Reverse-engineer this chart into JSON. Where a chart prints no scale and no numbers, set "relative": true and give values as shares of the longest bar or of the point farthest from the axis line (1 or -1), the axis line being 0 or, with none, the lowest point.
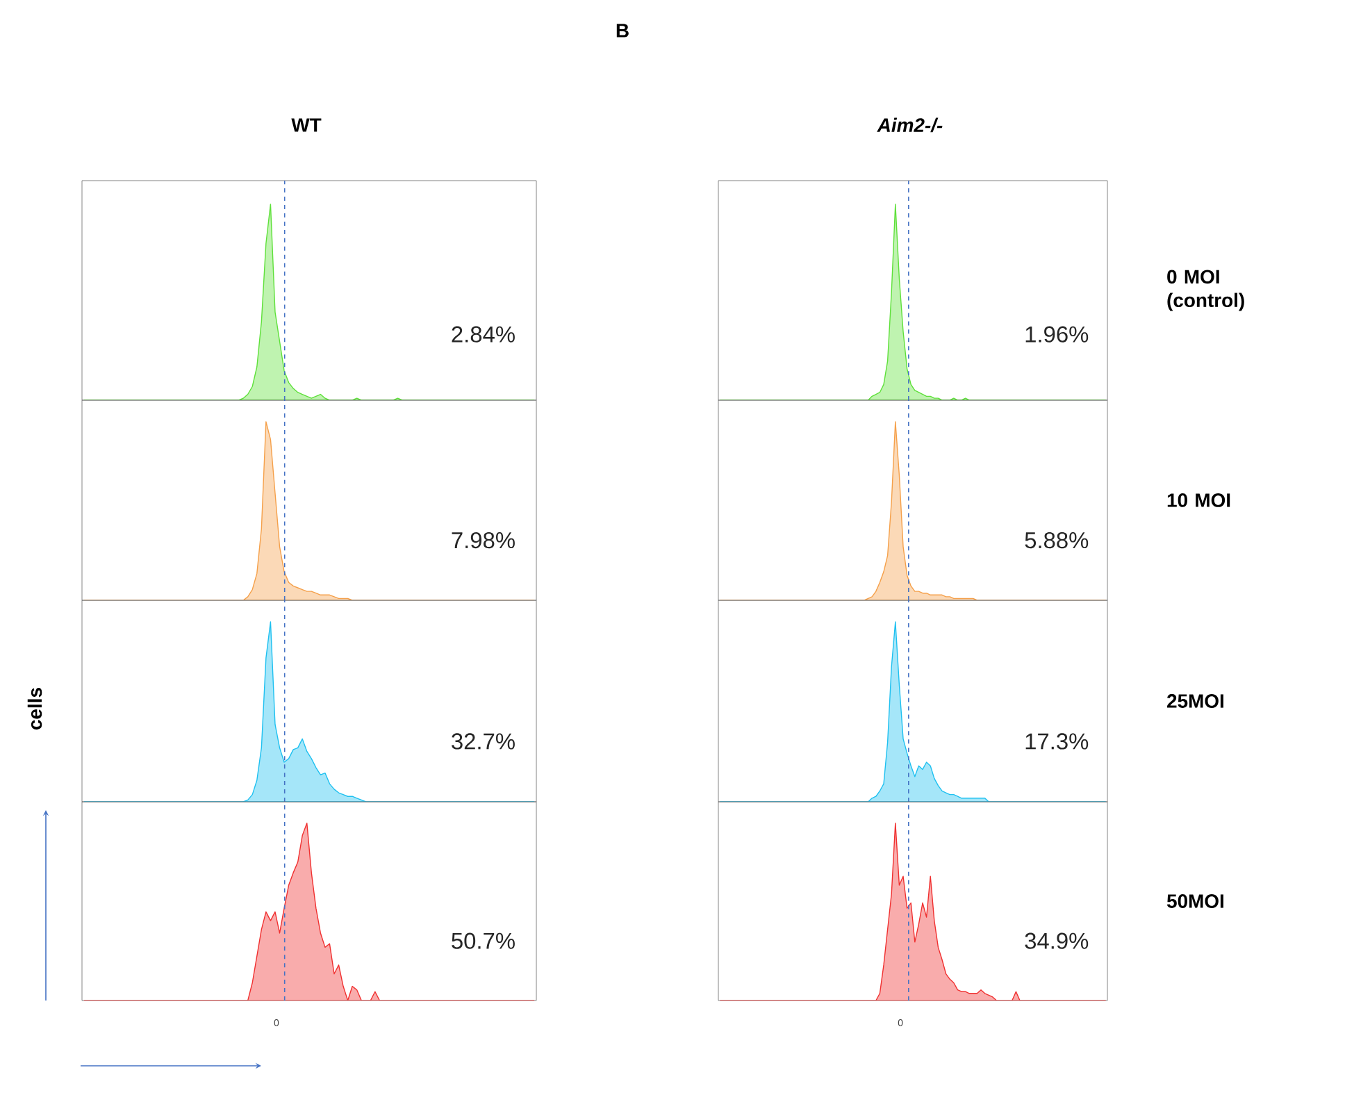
{
  "chart_data": [
    {
      "type": "area",
      "relative": true,
      "subtitle": "WT",
      "color": "#5ee03a",
      "annotations": [
        "2.84%",
        "B"
      ],
      "categories": [
        null,
        null,
        null,
        null,
        null,
        null,
        null,
        null,
        null,
        null,
        null,
        null,
        null,
        null,
        null,
        null,
        null,
        null,
        null,
        null,
        null,
        null,
        null,
        null,
        null,
        null,
        null,
        null,
        null,
        null,
        null,
        null,
        null,
        null,
        null,
        null,
        null,
        null,
        null,
        null,
        null,
        null,
        null,
        null,
        null,
        null,
        null,
        null,
        null,
        null,
        null,
        null,
        null,
        null,
        null,
        null,
        null,
        null,
        null,
        null,
        null,
        null,
        null,
        null,
        null,
        null,
        null,
        null,
        null,
        null,
        null,
        null,
        null,
        null,
        null,
        null,
        null,
        null,
        null,
        null,
        null,
        null,
        null,
        null,
        null,
        null,
        null,
        null,
        null,
        null,
        null,
        null,
        null,
        null,
        null,
        null,
        null,
        null,
        null,
        null
      ],
      "values": [
        0,
        0,
        0,
        0,
        0,
        0,
        0,
        0,
        0,
        0,
        0,
        0,
        0,
        0,
        0,
        0,
        0,
        0,
        0,
        0,
        0,
        0,
        0,
        0,
        0,
        0,
        0,
        0,
        0,
        0,
        0,
        0,
        0,
        0,
        0,
        0.01,
        0.03,
        0.07,
        0.17,
        0.4,
        0.8,
        1.0,
        0.45,
        0.3,
        0.15,
        0.09,
        0.06,
        0.04,
        0.03,
        0.02,
        0.01,
        0.02,
        0.03,
        0.01,
        0,
        0,
        0,
        0,
        0,
        0,
        0.01,
        0,
        0,
        0,
        0,
        0,
        0,
        0,
        0,
        0.01,
        0,
        0,
        0,
        0,
        0,
        0,
        0,
        0,
        0,
        0,
        0,
        0,
        0,
        0,
        0,
        0,
        0,
        0,
        0,
        0,
        0,
        0,
        0,
        0,
        0,
        0,
        0,
        0,
        0,
        0
      ]
    },
    {
      "type": "area",
      "relative": true,
      "subtitle": "Aim2-/-",
      "color": "#5ee03a",
      "annotations": [
        "1.96%",
        "0 MOI (control)"
      ],
      "categories": [
        null,
        null,
        null,
        null,
        null,
        null,
        null,
        null,
        null,
        null,
        null,
        null,
        null,
        null,
        null,
        null,
        null,
        null,
        null,
        null,
        null,
        null,
        null,
        null,
        null,
        null,
        null,
        null,
        null,
        null,
        null,
        null,
        null,
        null,
        null,
        null,
        null,
        null,
        null,
        null,
        null,
        null,
        null,
        null,
        null,
        null,
        null,
        null,
        null,
        null,
        null,
        null,
        null,
        null,
        null,
        null,
        null,
        null,
        null,
        null,
        null,
        null,
        null,
        null,
        null,
        null,
        null,
        null,
        null,
        null,
        null,
        null,
        null,
        null,
        null,
        null,
        null,
        null,
        null,
        null,
        null,
        null,
        null,
        null,
        null,
        null,
        null,
        null,
        null,
        null,
        null,
        null,
        null,
        null,
        null,
        null,
        null,
        null,
        null,
        null
      ],
      "values": [
        0,
        0,
        0,
        0,
        0,
        0,
        0,
        0,
        0,
        0,
        0,
        0,
        0,
        0,
        0,
        0,
        0,
        0,
        0,
        0,
        0,
        0,
        0,
        0,
        0,
        0,
        0,
        0,
        0,
        0,
        0,
        0,
        0,
        0,
        0,
        0,
        0,
        0,
        0,
        0.02,
        0.03,
        0.04,
        0.08,
        0.2,
        0.55,
        1.0,
        0.62,
        0.35,
        0.16,
        0.08,
        0.05,
        0.04,
        0.03,
        0.02,
        0.02,
        0.01,
        0.01,
        0,
        0,
        0,
        0.01,
        0,
        0,
        0.01,
        0,
        0,
        0,
        0,
        0,
        0,
        0,
        0,
        0,
        0,
        0,
        0,
        0,
        0,
        0,
        0,
        0,
        0,
        0,
        0,
        0,
        0,
        0,
        0,
        0,
        0,
        0,
        0,
        0,
        0,
        0,
        0,
        0,
        0,
        0,
        0
      ]
    },
    {
      "type": "area",
      "relative": true,
      "color": "#f5a04a",
      "annotations": [
        "7.98%"
      ],
      "categories": [
        null,
        null,
        null,
        null,
        null,
        null,
        null,
        null,
        null,
        null,
        null,
        null,
        null,
        null,
        null,
        null,
        null,
        null,
        null,
        null,
        null,
        null,
        null,
        null,
        null,
        null,
        null,
        null,
        null,
        null,
        null,
        null,
        null,
        null,
        null,
        null,
        null,
        null,
        null,
        null,
        null,
        null,
        null,
        null,
        null,
        null,
        null,
        null,
        null,
        null,
        null,
        null,
        null,
        null,
        null,
        null,
        null,
        null,
        null,
        null,
        null,
        null,
        null,
        null,
        null,
        null,
        null,
        null,
        null,
        null,
        null,
        null,
        null,
        null,
        null,
        null,
        null,
        null,
        null,
        null,
        null,
        null,
        null,
        null,
        null,
        null,
        null,
        null,
        null,
        null,
        null,
        null,
        null,
        null,
        null,
        null,
        null,
        null,
        null,
        null
      ],
      "values": [
        0,
        0,
        0,
        0,
        0,
        0,
        0,
        0,
        0,
        0,
        0,
        0,
        0,
        0,
        0,
        0,
        0,
        0,
        0,
        0,
        0,
        0,
        0,
        0,
        0,
        0,
        0,
        0,
        0,
        0,
        0,
        0,
        0,
        0,
        0,
        0,
        0.02,
        0.06,
        0.15,
        0.4,
        1.0,
        0.9,
        0.6,
        0.3,
        0.16,
        0.1,
        0.08,
        0.07,
        0.06,
        0.05,
        0.05,
        0.04,
        0.03,
        0.03,
        0.03,
        0.02,
        0.01,
        0.01,
        0.01,
        0,
        0,
        0,
        0,
        0,
        0,
        0,
        0,
        0,
        0,
        0,
        0,
        0,
        0,
        0,
        0,
        0,
        0,
        0,
        0,
        0,
        0,
        0,
        0,
        0,
        0,
        0,
        0,
        0,
        0,
        0,
        0,
        0,
        0,
        0,
        0,
        0,
        0,
        0,
        0,
        0
      ]
    },
    {
      "type": "area",
      "relative": true,
      "color": "#f5a04a",
      "annotations": [
        "5.88%",
        "10 MOI"
      ],
      "categories": [
        null,
        null,
        null,
        null,
        null,
        null,
        null,
        null,
        null,
        null,
        null,
        null,
        null,
        null,
        null,
        null,
        null,
        null,
        null,
        null,
        null,
        null,
        null,
        null,
        null,
        null,
        null,
        null,
        null,
        null,
        null,
        null,
        null,
        null,
        null,
        null,
        null,
        null,
        null,
        null,
        null,
        null,
        null,
        null,
        null,
        null,
        null,
        null,
        null,
        null,
        null,
        null,
        null,
        null,
        null,
        null,
        null,
        null,
        null,
        null,
        null,
        null,
        null,
        null,
        null,
        null,
        null,
        null,
        null,
        null,
        null,
        null,
        null,
        null,
        null,
        null,
        null,
        null,
        null,
        null,
        null,
        null,
        null,
        null,
        null,
        null,
        null,
        null,
        null,
        null,
        null,
        null,
        null,
        null,
        null,
        null,
        null,
        null,
        null,
        null
      ],
      "values": [
        0,
        0,
        0,
        0,
        0,
        0,
        0,
        0,
        0,
        0,
        0,
        0,
        0,
        0,
        0,
        0,
        0,
        0,
        0,
        0,
        0,
        0,
        0,
        0,
        0,
        0,
        0,
        0,
        0,
        0,
        0,
        0,
        0,
        0,
        0,
        0,
        0,
        0,
        0.01,
        0.02,
        0.05,
        0.1,
        0.16,
        0.25,
        0.55,
        1.0,
        0.7,
        0.3,
        0.14,
        0.08,
        0.05,
        0.05,
        0.04,
        0.04,
        0.03,
        0.03,
        0.03,
        0.03,
        0.02,
        0.02,
        0.01,
        0.01,
        0.01,
        0.01,
        0.01,
        0.01,
        0,
        0,
        0,
        0,
        0,
        0,
        0,
        0,
        0,
        0,
        0,
        0,
        0,
        0,
        0,
        0,
        0,
        0,
        0,
        0,
        0,
        0,
        0,
        0,
        0,
        0,
        0,
        0,
        0,
        0,
        0,
        0,
        0,
        0
      ]
    },
    {
      "type": "area",
      "relative": true,
      "color": "#1ec0f0",
      "annotations": [
        "32.7%"
      ],
      "categories": [
        null,
        null,
        null,
        null,
        null,
        null,
        null,
        null,
        null,
        null,
        null,
        null,
        null,
        null,
        null,
        null,
        null,
        null,
        null,
        null,
        null,
        null,
        null,
        null,
        null,
        null,
        null,
        null,
        null,
        null,
        null,
        null,
        null,
        null,
        null,
        null,
        null,
        null,
        null,
        null,
        null,
        null,
        null,
        null,
        null,
        null,
        null,
        null,
        null,
        null,
        null,
        null,
        null,
        null,
        null,
        null,
        null,
        null,
        null,
        null,
        null,
        null,
        null,
        null,
        null,
        null,
        null,
        null,
        null,
        null,
        null,
        null,
        null,
        null,
        null,
        null,
        null,
        null,
        null,
        null,
        null,
        null,
        null,
        null,
        null,
        null,
        null,
        null,
        null,
        null,
        null,
        null,
        null,
        null,
        null,
        null,
        null,
        null,
        null,
        null
      ],
      "values": [
        0,
        0,
        0,
        0,
        0,
        0,
        0,
        0,
        0,
        0,
        0,
        0,
        0,
        0,
        0,
        0,
        0,
        0,
        0,
        0,
        0,
        0,
        0,
        0,
        0,
        0,
        0,
        0,
        0,
        0,
        0,
        0,
        0,
        0,
        0,
        0,
        0.01,
        0.04,
        0.12,
        0.3,
        0.8,
        1.0,
        0.43,
        0.3,
        0.22,
        0.24,
        0.29,
        0.3,
        0.35,
        0.28,
        0.24,
        0.19,
        0.15,
        0.16,
        0.1,
        0.07,
        0.05,
        0.04,
        0.03,
        0.03,
        0.02,
        0.01,
        0,
        0,
        0,
        0,
        0,
        0,
        0,
        0,
        0,
        0,
        0,
        0,
        0,
        0,
        0,
        0,
        0,
        0,
        0,
        0,
        0,
        0,
        0,
        0,
        0,
        0,
        0,
        0,
        0,
        0,
        0,
        0,
        0,
        0,
        0,
        0,
        0,
        0
      ]
    },
    {
      "type": "area",
      "relative": true,
      "color": "#1ec0f0",
      "annotations": [
        "17.3%",
        "25MOI"
      ],
      "categories": [
        null,
        null,
        null,
        null,
        null,
        null,
        null,
        null,
        null,
        null,
        null,
        null,
        null,
        null,
        null,
        null,
        null,
        null,
        null,
        null,
        null,
        null,
        null,
        null,
        null,
        null,
        null,
        null,
        null,
        null,
        null,
        null,
        null,
        null,
        null,
        null,
        null,
        null,
        null,
        null,
        null,
        null,
        null,
        null,
        null,
        null,
        null,
        null,
        null,
        null,
        null,
        null,
        null,
        null,
        null,
        null,
        null,
        null,
        null,
        null,
        null,
        null,
        null,
        null,
        null,
        null,
        null,
        null,
        null,
        null,
        null,
        null,
        null,
        null,
        null,
        null,
        null,
        null,
        null,
        null,
        null,
        null,
        null,
        null,
        null,
        null,
        null,
        null,
        null,
        null,
        null,
        null,
        null,
        null,
        null,
        null,
        null,
        null,
        null,
        null
      ],
      "values": [
        0,
        0,
        0,
        0,
        0,
        0,
        0,
        0,
        0,
        0,
        0,
        0,
        0,
        0,
        0,
        0,
        0,
        0,
        0,
        0,
        0,
        0,
        0,
        0,
        0,
        0,
        0,
        0,
        0,
        0,
        0,
        0,
        0,
        0,
        0,
        0,
        0,
        0,
        0,
        0.02,
        0.03,
        0.06,
        0.1,
        0.33,
        0.75,
        1.0,
        0.65,
        0.35,
        0.27,
        0.2,
        0.14,
        0.2,
        0.18,
        0.22,
        0.2,
        0.13,
        0.09,
        0.06,
        0.05,
        0.04,
        0.04,
        0.03,
        0.02,
        0.02,
        0.02,
        0.02,
        0.02,
        0.02,
        0.02,
        0,
        0,
        0,
        0,
        0,
        0,
        0,
        0,
        0,
        0,
        0,
        0,
        0,
        0,
        0,
        0,
        0,
        0,
        0,
        0,
        0,
        0,
        0,
        0,
        0,
        0,
        0,
        0,
        0,
        0,
        0
      ]
    },
    {
      "type": "area",
      "relative": true,
      "ylabel": "cells",
      "color": "#f03030",
      "annotations": [
        "50.7%",
        "0"
      ],
      "categories": [
        null,
        null,
        null,
        null,
        null,
        null,
        null,
        null,
        null,
        null,
        null,
        null,
        null,
        null,
        null,
        null,
        null,
        null,
        null,
        null,
        null,
        null,
        null,
        null,
        null,
        null,
        null,
        null,
        null,
        null,
        null,
        null,
        null,
        null,
        null,
        null,
        null,
        null,
        null,
        null,
        null,
        null,
        null,
        null,
        null,
        null,
        null,
        null,
        null,
        null,
        null,
        null,
        null,
        null,
        null,
        null,
        null,
        null,
        null,
        null,
        null,
        null,
        null,
        null,
        null,
        null,
        null,
        null,
        null,
        null,
        null,
        null,
        null,
        null,
        null,
        null,
        null,
        null,
        null,
        null,
        null,
        null,
        null,
        null,
        null,
        null,
        null,
        null,
        null,
        null,
        null,
        null,
        null,
        null,
        null,
        null,
        null,
        null,
        null,
        null
      ],
      "values": [
        0,
        0,
        0,
        0,
        0,
        0,
        0,
        0,
        0,
        0,
        0,
        0,
        0,
        0,
        0,
        0,
        0,
        0,
        0,
        0,
        0,
        0,
        0,
        0,
        0,
        0,
        0,
        0,
        0,
        0,
        0,
        0,
        0,
        0,
        0,
        0,
        0,
        0.1,
        0.25,
        0.4,
        0.5,
        0.45,
        0.5,
        0.38,
        0.52,
        0.65,
        0.72,
        0.78,
        0.93,
        1.0,
        0.72,
        0.52,
        0.38,
        0.3,
        0.32,
        0.15,
        0.2,
        0.08,
        0,
        0.08,
        0.06,
        0,
        0,
        0,
        0.05,
        0,
        0,
        0,
        0,
        0,
        0,
        0,
        0,
        0,
        0,
        0,
        0,
        0,
        0,
        0,
        0,
        0,
        0,
        0,
        0,
        0,
        0,
        0,
        0,
        0,
        0,
        0,
        0,
        0,
        0,
        0,
        0,
        0,
        0,
        0
      ]
    },
    {
      "type": "area",
      "relative": true,
      "color": "#f03030",
      "annotations": [
        "34.9%",
        "50MOI",
        "0"
      ],
      "categories": [
        null,
        null,
        null,
        null,
        null,
        null,
        null,
        null,
        null,
        null,
        null,
        null,
        null,
        null,
        null,
        null,
        null,
        null,
        null,
        null,
        null,
        null,
        null,
        null,
        null,
        null,
        null,
        null,
        null,
        null,
        null,
        null,
        null,
        null,
        null,
        null,
        null,
        null,
        null,
        null,
        null,
        null,
        null,
        null,
        null,
        null,
        null,
        null,
        null,
        null,
        null,
        null,
        null,
        null,
        null,
        null,
        null,
        null,
        null,
        null,
        null,
        null,
        null,
        null,
        null,
        null,
        null,
        null,
        null,
        null,
        null,
        null,
        null,
        null,
        null,
        null,
        null,
        null,
        null,
        null,
        null,
        null,
        null,
        null,
        null,
        null,
        null,
        null,
        null,
        null,
        null,
        null,
        null,
        null,
        null,
        null,
        null,
        null,
        null,
        null
      ],
      "values": [
        0,
        0,
        0,
        0,
        0,
        0,
        0,
        0,
        0,
        0,
        0,
        0,
        0,
        0,
        0,
        0,
        0,
        0,
        0,
        0,
        0,
        0,
        0,
        0,
        0,
        0,
        0,
        0,
        0,
        0,
        0,
        0,
        0,
        0,
        0,
        0,
        0,
        0,
        0,
        0,
        0,
        0.04,
        0.2,
        0.4,
        0.6,
        1.0,
        0.65,
        0.7,
        0.52,
        0.55,
        0.33,
        0.43,
        0.55,
        0.47,
        0.7,
        0.45,
        0.3,
        0.23,
        0.15,
        0.12,
        0.1,
        0.06,
        0.05,
        0.05,
        0.04,
        0.04,
        0.04,
        0.06,
        0.04,
        0.03,
        0.02,
        0,
        0,
        0,
        0,
        0,
        0.05,
        0,
        0,
        0,
        0,
        0,
        0,
        0,
        0,
        0,
        0,
        0,
        0,
        0,
        0,
        0,
        0,
        0,
        0,
        0,
        0,
        0,
        0,
        0
      ]
    }
  ]
}
